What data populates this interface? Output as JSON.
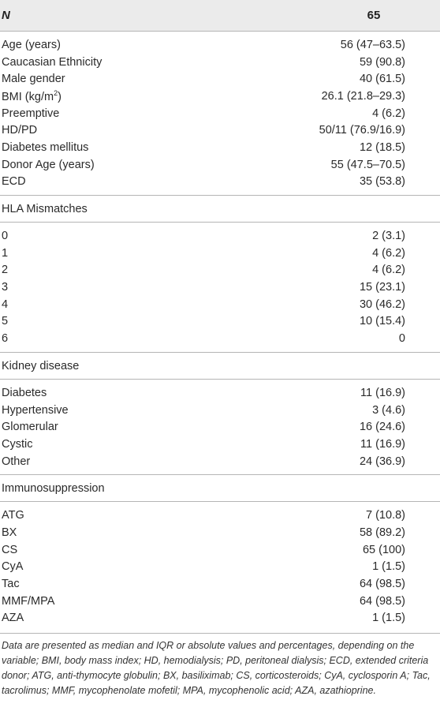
{
  "header": {
    "label": "N",
    "value": "65"
  },
  "groups": [
    {
      "title": "",
      "rows": [
        {
          "label": "Age (years)",
          "value": "56 (47–63.5)"
        },
        {
          "label": "Caucasian Ethnicity",
          "value": "59 (90.8)"
        },
        {
          "label": "Male gender",
          "value": "40 (61.5)"
        },
        {
          "label": "BMI (kg/m",
          "sup": "2",
          "label_end": ")",
          "value": "26.1 (21.8–29.3)"
        },
        {
          "label": "Preemptive",
          "value": "4 (6.2)"
        },
        {
          "label": "HD/PD",
          "value": "50/11 (76.9/16.9)"
        },
        {
          "label": "Diabetes mellitus",
          "value": "12 (18.5)"
        },
        {
          "label": "Donor Age (years)",
          "value": "55 (47.5–70.5)"
        },
        {
          "label": "ECD",
          "value": "35 (53.8)"
        }
      ]
    },
    {
      "title": "HLA Mismatches",
      "rows": [
        {
          "label": "0",
          "value": "2 (3.1)"
        },
        {
          "label": "1",
          "value": "4 (6.2)"
        },
        {
          "label": "2",
          "value": "4 (6.2)"
        },
        {
          "label": "3",
          "value": "15 (23.1)"
        },
        {
          "label": "4",
          "value": "30 (46.2)"
        },
        {
          "label": "5",
          "value": "10 (15.4)"
        },
        {
          "label": "6",
          "value": "0"
        }
      ]
    },
    {
      "title": "Kidney disease",
      "rows": [
        {
          "label": "Diabetes",
          "value": "11 (16.9)"
        },
        {
          "label": "Hypertensive",
          "value": "3 (4.6)"
        },
        {
          "label": "Glomerular",
          "value": "16 (24.6)"
        },
        {
          "label": "Cystic",
          "value": "11 (16.9)"
        },
        {
          "label": "Other",
          "value": "24 (36.9)"
        }
      ]
    },
    {
      "title": "Immunosuppression",
      "rows": [
        {
          "label": "ATG",
          "value": "7 (10.8)"
        },
        {
          "label": "BX",
          "value": "58 (89.2)"
        },
        {
          "label": "CS",
          "value": "65 (100)"
        },
        {
          "label": "CyA",
          "value": "1 (1.5)"
        },
        {
          "label": "Tac",
          "value": "64 (98.5)"
        },
        {
          "label": "MMF/MPA",
          "value": "64 (98.5)"
        },
        {
          "label": "AZA",
          "value": "1 (1.5)"
        }
      ]
    }
  ],
  "footnote": "Data are presented as median and IQR or absolute values and percentages, depending on the variable; BMI, body mass index; HD, hemodialysis; PD, peritoneal dialysis; ECD, extended criteria donor; ATG, anti-thymocyte globulin; BX, basiliximab; CS, corticosteroids; CyA, cyclosporin A; Tac, tacrolimus; MMF, mycophenolate mofetil; MPA, mycophenolic acid; AZA, azathioprine."
}
